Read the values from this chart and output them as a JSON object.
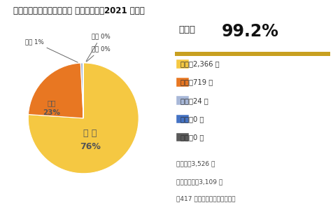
{
  "title": "居住中ホームステージング 顧客満足度【2021 年度】",
  "satisfaction_label": "満足度",
  "satisfaction_value": "99.2%",
  "pie_values": [
    2366,
    719,
    24,
    0.5,
    0.5
  ],
  "pie_label_kangeki": "感 激",
  "pie_pct_kangeki": "76%",
  "pie_label_kanshin": "感心",
  "pie_pct_kanshin": "23%",
  "annot_futsu": "普通 1%",
  "annot_fuman": "不満 0%",
  "annot_fukai": "不快 0%",
  "pie_colors": [
    "#F5C842",
    "#E87722",
    "#A8B8D8",
    "#4472C4",
    "#595959"
  ],
  "legend_labels": [
    "感激：2,366 件",
    "感心：719 件",
    "普通：24 件",
    "不満：0 件",
    "不快：0 件"
  ],
  "legend_colors": [
    "#F5C842",
    "#E87722",
    "#A8B8D8",
    "#4472C4",
    "#595959"
  ],
  "note_line1": "実施数：3,526 件",
  "note_line2": "有効回答数：3,109 件",
  "note_line3": "（417 件記載なしのため無効）",
  "separator_color": "#C8A020",
  "bg_color": "#FFFFFF",
  "text_color": "#333333"
}
